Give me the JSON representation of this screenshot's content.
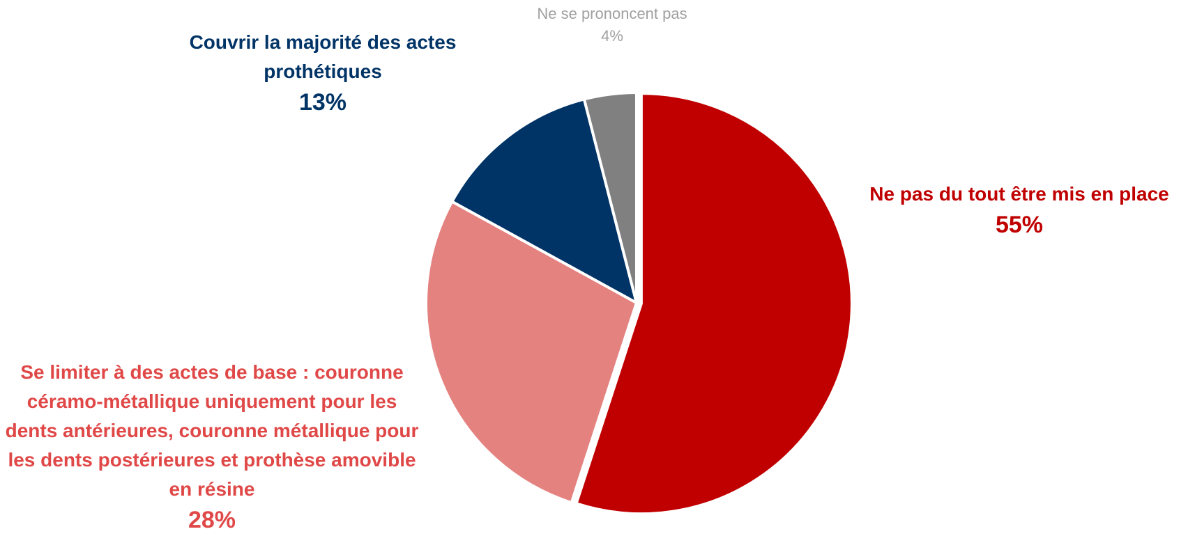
{
  "chart_data": {
    "type": "pie",
    "categories": [
      "Ne pas du tout être mis en place",
      "Se limiter à des actes de base : couronne céramo-métallique uniquement pour les dents antérieures, couronne métallique pour les dents postérieures et prothèse amovible en résine",
      "Couvrir la majorité des actes prothétiques",
      "Ne se prononcent pas"
    ],
    "values": [
      55,
      28,
      13,
      4
    ],
    "value_labels": [
      "55%",
      "28%",
      "13%",
      "4%"
    ],
    "colors": [
      "#c00000",
      "#e48280",
      "#003366",
      "#808080"
    ]
  }
}
